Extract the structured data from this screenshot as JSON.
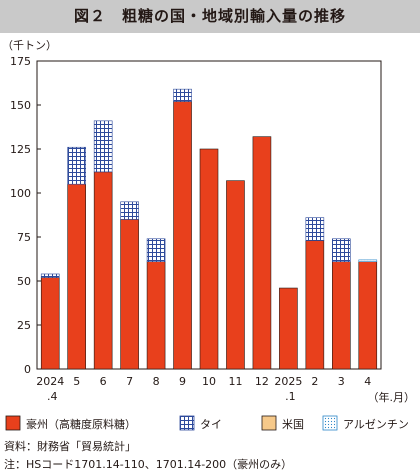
{
  "title": "図２　粗糖の国・地域別輸入量の推移",
  "source": "資料：財務省「貿易統計」",
  "note": "注：HSコード1701.14-110、1701.14-200（豪州のみ）",
  "colors": {
    "australia": "#e8401c",
    "thailand_bg": "#ffffff",
    "thailand_grid": "#2e4a9b",
    "usa": "#f6c98a",
    "argentina_dot": "#2a86c8"
  },
  "chart_data": {
    "type": "bar",
    "stacked": true,
    "ylabel": "（千トン）",
    "xlabel": "（年.月）",
    "ylim": [
      0,
      175
    ],
    "yticks": [
      0,
      25,
      50,
      75,
      100,
      125,
      150,
      175
    ],
    "grid": false,
    "legend_position": "bottom",
    "categories": [
      {
        "label": "2024",
        "sub": ".4"
      },
      {
        "label": "5",
        "sub": ""
      },
      {
        "label": "6",
        "sub": ""
      },
      {
        "label": "7",
        "sub": ""
      },
      {
        "label": "8",
        "sub": ""
      },
      {
        "label": "9",
        "sub": ""
      },
      {
        "label": "10",
        "sub": ""
      },
      {
        "label": "11",
        "sub": ""
      },
      {
        "label": "12",
        "sub": ""
      },
      {
        "label": "2025",
        "sub": ".1"
      },
      {
        "label": "2",
        "sub": ""
      },
      {
        "label": "3",
        "sub": ""
      },
      {
        "label": "4",
        "sub": ""
      }
    ],
    "series": [
      {
        "name": "豪州（高糖度原料糖）",
        "pattern": "solid",
        "values": [
          52,
          105,
          112,
          85,
          61,
          152,
          125,
          107,
          132,
          46,
          73,
          61,
          61
        ]
      },
      {
        "name": "タイ",
        "pattern": "grid",
        "values": [
          2,
          21,
          29,
          10,
          13,
          7,
          0,
          0,
          0,
          0,
          13,
          13,
          0
        ]
      },
      {
        "name": "米国",
        "pattern": "solid",
        "values": [
          0,
          0,
          0,
          0,
          0,
          0,
          0,
          0,
          0,
          0,
          0,
          0,
          0
        ]
      },
      {
        "name": "アルゼンチン",
        "pattern": "dots",
        "values": [
          0,
          0,
          0,
          0,
          0,
          0,
          0,
          0,
          0,
          0,
          0,
          0,
          1
        ]
      }
    ]
  }
}
